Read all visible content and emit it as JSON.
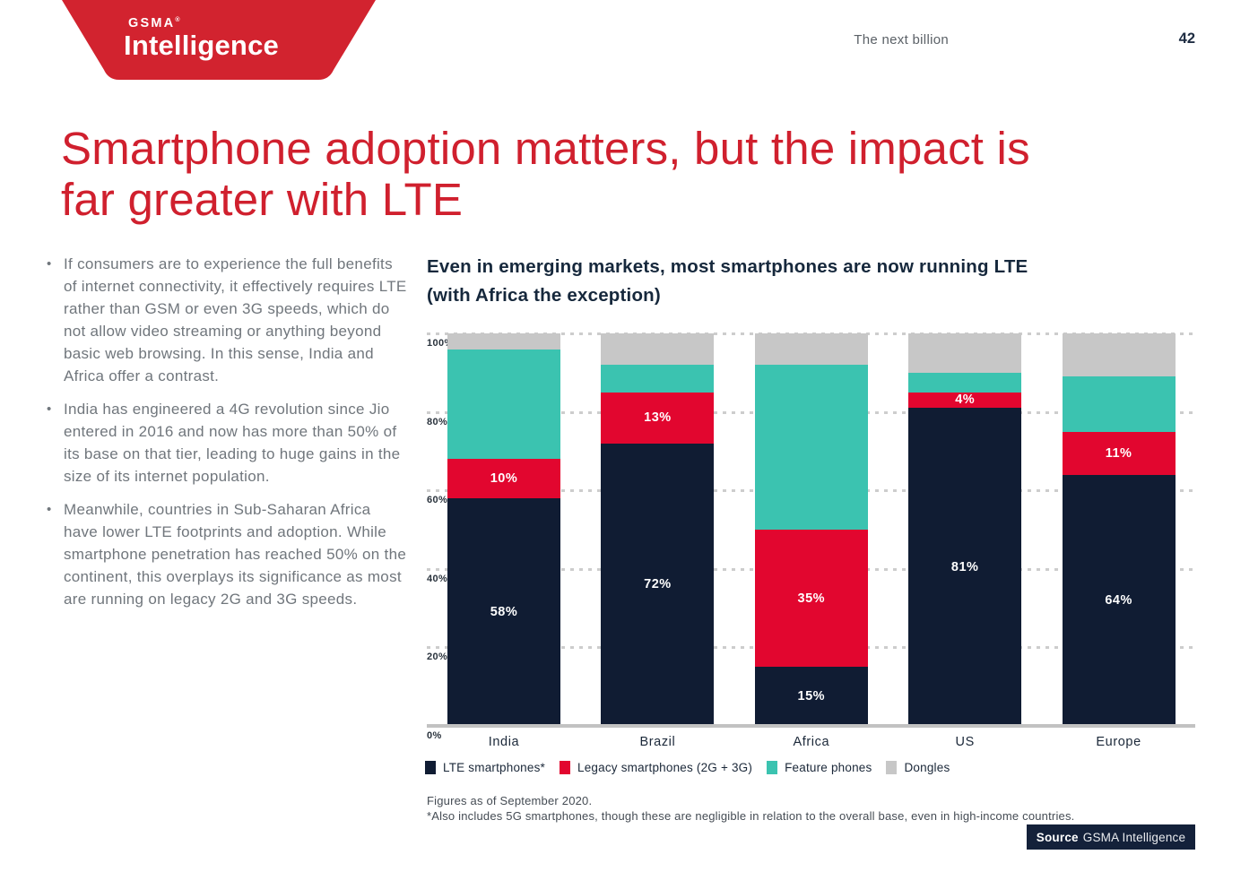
{
  "header": {
    "section": "The next billion",
    "page_number": "42",
    "logo": {
      "top": "GSMA",
      "mark": "®",
      "name": "Intelligence",
      "color": "#d2232f"
    }
  },
  "title": {
    "lines": [
      "Smartphone adoption matters, but the impact is",
      "far greater with LTE"
    ],
    "color": "#d0202e"
  },
  "bullets": [
    "If consumers are to experience the full benefits of internet connectivity, it effectively requires LTE rather than GSM or even 3G speeds, which do not allow video streaming or anything beyond basic web browsing. In this sense, India and Africa offer a contrast.",
    "India has engineered a 4G revolution since Jio entered in 2016 and now has more than 50% of its base on that tier, leading to huge gains in the size of its internet population.",
    "Meanwhile, countries in Sub-Saharan Africa have lower LTE footprints and adoption. While smartphone penetration has reached 50% on the continent, this overplays its significance as most are running on legacy 2G and 3G speeds."
  ],
  "chart_heading": {
    "lines": [
      "Even in emerging markets, most smartphones are now running LTE",
      "(with Africa the exception)"
    ]
  },
  "chart_data": {
    "type": "bar",
    "stacked": true,
    "title": "Even in emerging markets, most smartphones are now running LTE (with Africa the exception)",
    "categories": [
      "India",
      "Brazil",
      "Africa",
      "US",
      "Europe"
    ],
    "series": [
      {
        "name": "LTE smartphones*",
        "color": "#101c33",
        "values": [
          58,
          72,
          15,
          81,
          64
        ],
        "labeled": true
      },
      {
        "name": "Legacy smartphones (2G + 3G)",
        "color": "#e2062f",
        "values": [
          10,
          13,
          35,
          4,
          11
        ],
        "labeled": true
      },
      {
        "name": "Feature phones",
        "color": "#3bc3b0",
        "values": [
          28,
          7,
          42,
          5,
          14
        ],
        "labeled": false
      },
      {
        "name": "Dongles",
        "color": "#c7c7c7",
        "values": [
          4,
          8,
          8,
          10,
          11
        ],
        "labeled": false
      }
    ],
    "data_label_suffix": "%",
    "y_ticks": [
      0,
      20,
      40,
      60,
      80,
      100
    ],
    "y_tick_suffix": "%",
    "ylim": [
      0,
      100
    ],
    "grid": "dashed-horizontal",
    "legend_position": "bottom"
  },
  "footnotes": [
    "Figures as of September 2020.",
    "*Also includes 5G smartphones, though these are negligible in relation to the overall base, even in high-income countries."
  ],
  "source": {
    "label": "Source",
    "value": "GSMA Intelligence"
  }
}
